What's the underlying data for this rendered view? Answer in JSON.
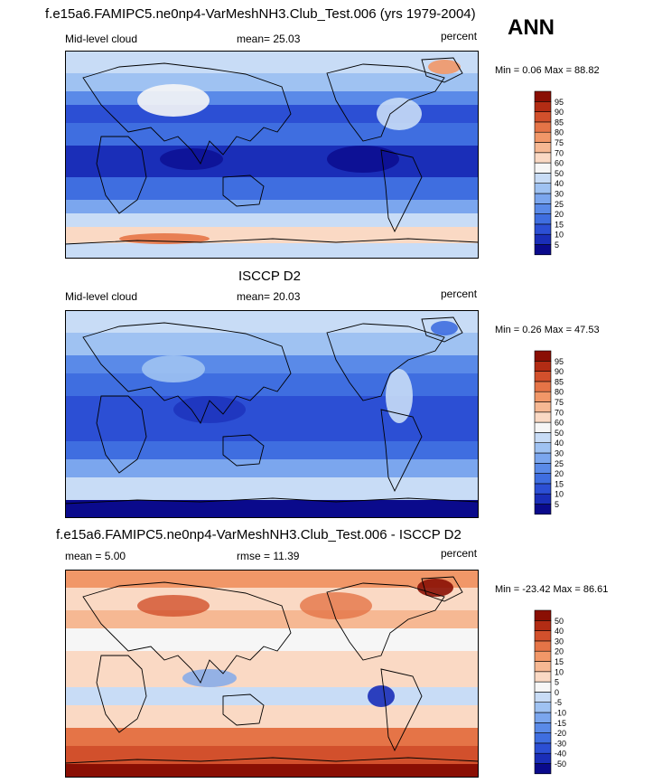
{
  "season": "ANN",
  "panels": [
    {
      "title": "f.e15a6.FAMIPC5.ne0np4-VarMeshNH3.Club_Test.006 (yrs 1979-2004)",
      "left_label": "Mid-level cloud",
      "center_label": "mean=  25.03",
      "right_label": "percent",
      "minmax": "Min =   0.06 Max =  88.82"
    },
    {
      "title": "ISCCP D2",
      "left_label": "Mid-level cloud",
      "center_label": "mean=  20.03",
      "right_label": "percent",
      "minmax": "Min =   0.26 Max =  47.53"
    },
    {
      "title": "f.e15a6.FAMIPC5.ne0np4-VarMeshNH3.Club_Test.006 - ISCCP D2",
      "left_label": "mean =   5.00",
      "center_label": "rmse =  11.39",
      "right_label": "percent",
      "minmax": "Min = -23.42 Max =  86.61"
    }
  ],
  "chart_data": [
    {
      "type": "heatmap",
      "variable": "Mid-level cloud",
      "units": "percent",
      "mean": 25.03,
      "min": 0.06,
      "max": 88.82,
      "colorbar_levels": [
        5,
        10,
        15,
        20,
        25,
        30,
        40,
        50,
        60,
        70,
        75,
        80,
        85,
        90,
        95
      ],
      "colorbar_colors": [
        "#0a0a8c",
        "#1a2eb8",
        "#2c4fd4",
        "#3f6ee0",
        "#5a8ae8",
        "#7ba6ee",
        "#9fc2f2",
        "#c8dcf6",
        "#f6f6f6",
        "#fad9c4",
        "#f6b893",
        "#f19768",
        "#e57447",
        "#d2502c",
        "#b22c14",
        "#8a0f04"
      ]
    },
    {
      "type": "heatmap",
      "variable": "Mid-level cloud",
      "units": "percent",
      "mean": 20.03,
      "min": 0.26,
      "max": 47.53,
      "colorbar_levels": [
        5,
        10,
        15,
        20,
        25,
        30,
        40,
        50,
        60,
        70,
        75,
        80,
        85,
        90,
        95
      ],
      "colorbar_colors": [
        "#0a0a8c",
        "#1a2eb8",
        "#2c4fd4",
        "#3f6ee0",
        "#5a8ae8",
        "#7ba6ee",
        "#9fc2f2",
        "#c8dcf6",
        "#f6f6f6",
        "#fad9c4",
        "#f6b893",
        "#f19768",
        "#e57447",
        "#d2502c",
        "#b22c14",
        "#8a0f04"
      ]
    },
    {
      "type": "heatmap",
      "variable": "difference",
      "units": "percent",
      "mean": 5.0,
      "rmse": 11.39,
      "min": -23.42,
      "max": 86.61,
      "colorbar_levels": [
        -50,
        -40,
        -30,
        -20,
        -15,
        -10,
        -5,
        0,
        5,
        10,
        15,
        20,
        30,
        40,
        50
      ],
      "colorbar_colors": [
        "#0a0a8c",
        "#1a2eb8",
        "#2c4fd4",
        "#3f6ee0",
        "#5a8ae8",
        "#7ba6ee",
        "#9fc2f2",
        "#c8dcf6",
        "#f6f6f6",
        "#fad9c4",
        "#f6b893",
        "#f19768",
        "#e57447",
        "#d2502c",
        "#b22c14",
        "#8a0f04"
      ]
    }
  ]
}
